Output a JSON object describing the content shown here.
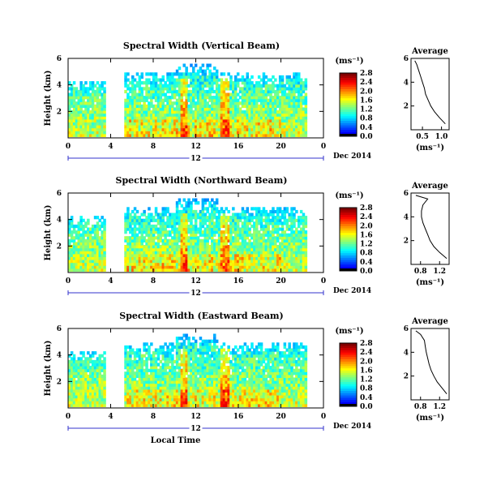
{
  "chart_data": [
    {
      "type": "heatmap",
      "title": "Spectral Width (Vertical Beam)",
      "xlabel": "",
      "ylabel": "Height (km)",
      "x_ticks": [
        "0",
        "4",
        "8",
        "12",
        "16",
        "20",
        "0"
      ],
      "y_ticks": [
        "2",
        "4",
        "6"
      ],
      "xlim": [
        0,
        24
      ],
      "ylim": [
        0,
        6
      ],
      "date_label": "12",
      "date_suffix": "Dec 2014",
      "colorbar": {
        "unit": "(ms⁻¹)",
        "ticks": [
          "0.0",
          "0.4",
          "0.8",
          "1.2",
          "1.6",
          "2.0",
          "2.4",
          "2.8"
        ]
      },
      "profile": {
        "title": "Average",
        "xlabel": "(ms⁻¹)",
        "x_ticks": [
          "0.5",
          "1.0"
        ],
        "y_ticks": [
          "2",
          "4",
          "6"
        ],
        "xlim": [
          0.2,
          1.2
        ],
        "ylim": [
          0,
          6
        ],
        "height": [
          0.5,
          1.0,
          1.5,
          2.0,
          2.5,
          3.0,
          3.5,
          4.0,
          4.5,
          5.0,
          5.5,
          5.8
        ],
        "value": [
          1.1,
          0.95,
          0.82,
          0.72,
          0.65,
          0.58,
          0.55,
          0.5,
          0.45,
          0.4,
          0.35,
          0.3
        ]
      }
    },
    {
      "type": "heatmap",
      "title": "Spectral Width (Northward Beam)",
      "xlabel": "",
      "ylabel": "Height (km)",
      "x_ticks": [
        "0",
        "4",
        "8",
        "12",
        "16",
        "20",
        "0"
      ],
      "y_ticks": [
        "2",
        "4",
        "6"
      ],
      "xlim": [
        0,
        24
      ],
      "ylim": [
        0,
        6
      ],
      "date_label": "12",
      "date_suffix": "Dec 2014",
      "colorbar": {
        "unit": "(ms⁻¹)",
        "ticks": [
          "0.0",
          "0.4",
          "0.8",
          "1.2",
          "1.6",
          "2.0",
          "2.4",
          "2.8"
        ]
      },
      "profile": {
        "title": "Average",
        "xlabel": "(ms⁻¹)",
        "x_ticks": [
          "0.8",
          "1.2"
        ],
        "y_ticks": [
          "2",
          "4",
          "6"
        ],
        "xlim": [
          0.6,
          1.4
        ],
        "ylim": [
          0,
          6
        ],
        "height": [
          0.5,
          1.0,
          1.5,
          2.0,
          2.5,
          3.0,
          3.5,
          4.0,
          4.5,
          5.0,
          5.5,
          5.8
        ],
        "value": [
          1.35,
          1.2,
          1.08,
          1.0,
          0.95,
          0.9,
          0.85,
          0.82,
          0.82,
          0.85,
          0.95,
          0.7
        ]
      }
    },
    {
      "type": "heatmap",
      "title": "Spectral Width (Eastward Beam)",
      "xlabel": "Local Time",
      "ylabel": "Height (km)",
      "x_ticks": [
        "0",
        "4",
        "8",
        "12",
        "16",
        "20",
        "0"
      ],
      "y_ticks": [
        "2",
        "4",
        "6"
      ],
      "xlim": [
        0,
        24
      ],
      "ylim": [
        0,
        6
      ],
      "date_label": "12",
      "date_suffix": "Dec 2014",
      "colorbar": {
        "unit": "(ms⁻¹)",
        "ticks": [
          "0.0",
          "0.4",
          "0.8",
          "1.2",
          "1.6",
          "2.0",
          "2.4",
          "2.8"
        ]
      },
      "profile": {
        "title": "Average",
        "xlabel": "(ms⁻¹)",
        "x_ticks": [
          "0.8",
          "1.2"
        ],
        "y_ticks": [
          "2",
          "4",
          "6"
        ],
        "xlim": [
          0.6,
          1.4
        ],
        "ylim": [
          0,
          6
        ],
        "height": [
          0.5,
          1.0,
          1.5,
          2.0,
          2.5,
          3.0,
          3.5,
          4.0,
          4.5,
          5.0,
          5.5,
          5.8
        ],
        "value": [
          1.35,
          1.25,
          1.15,
          1.08,
          1.02,
          0.98,
          0.95,
          0.92,
          0.9,
          0.88,
          0.8,
          0.7
        ]
      }
    }
  ]
}
